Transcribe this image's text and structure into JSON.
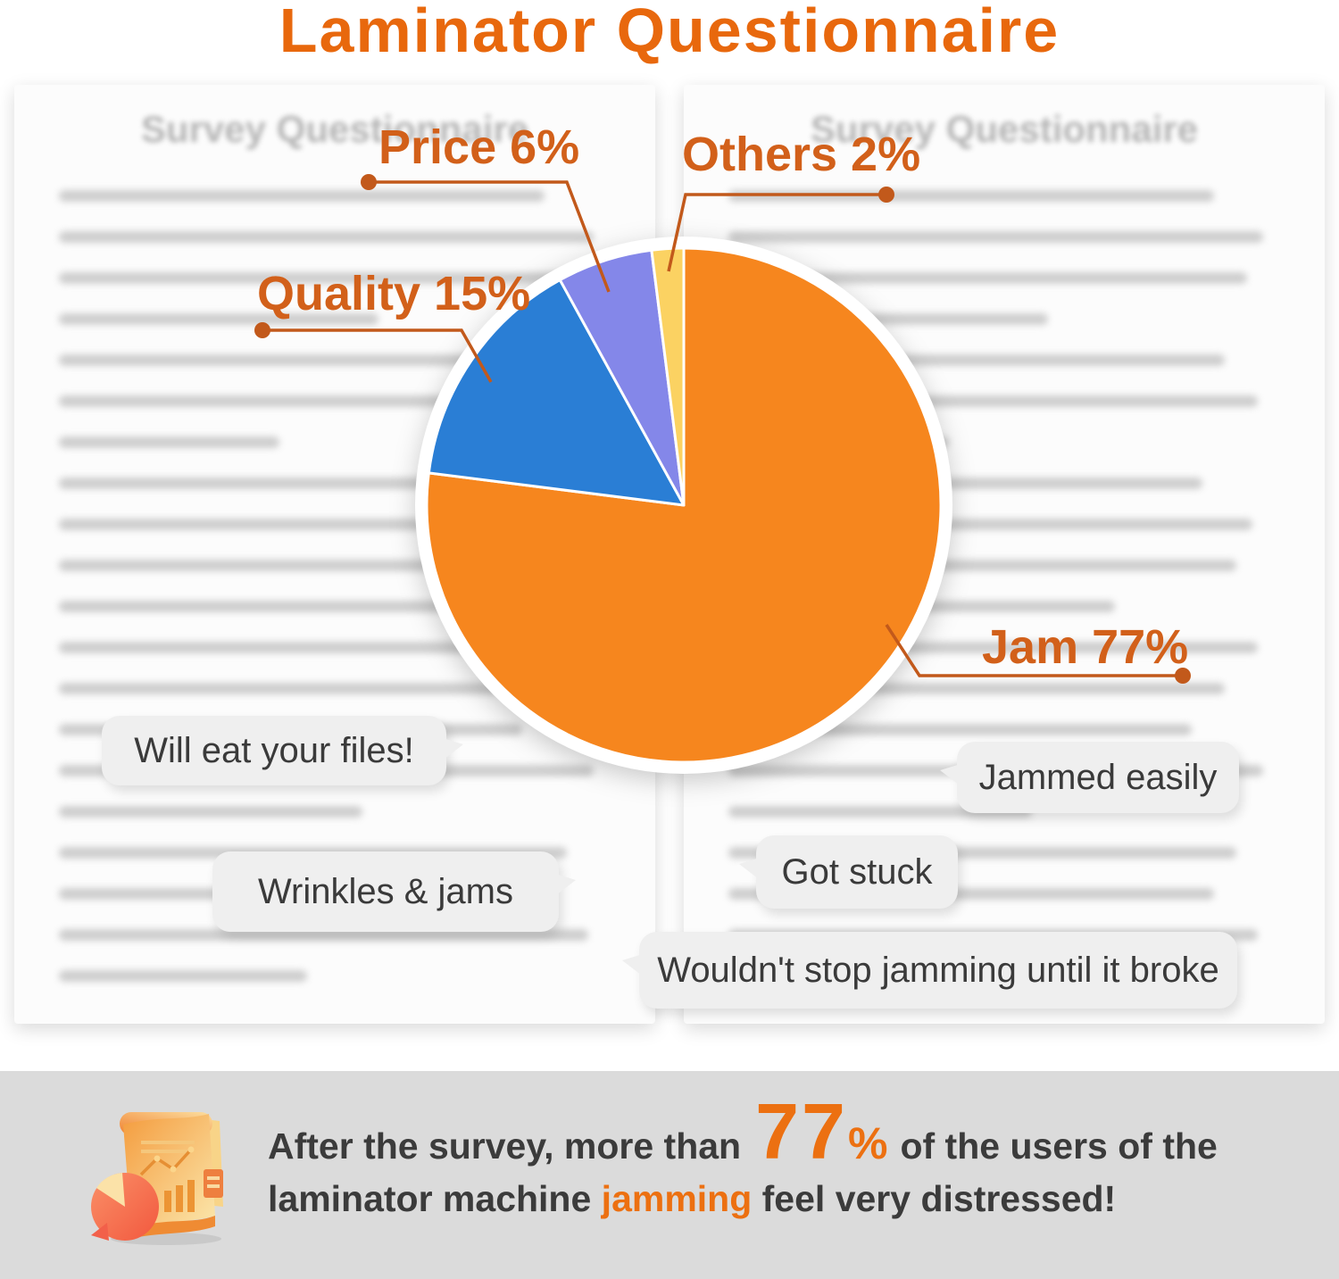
{
  "title": "Laminator Questionnaire",
  "background_docs": {
    "heading": "Survey Questionnaire"
  },
  "chart_data": {
    "type": "pie",
    "start_angle_deg": -90,
    "direction": "clockwise",
    "legend": "none",
    "segments": [
      {
        "label": "Jam",
        "value": 77,
        "color": "#F6861E",
        "display": "Jam 77%"
      },
      {
        "label": "Quality",
        "value": 15,
        "color": "#2A7ED5",
        "display": "Quality 15%"
      },
      {
        "label": "Price",
        "value": 6,
        "color": "#8487E9",
        "display": "Price 6%"
      },
      {
        "label": "Others",
        "value": 2,
        "color": "#FBD262",
        "display": "Others 2%"
      }
    ]
  },
  "quotes": [
    "Will eat your files!",
    "Jammed easily",
    "Got stuck",
    "Wrinkles & jams",
    "Wouldn't stop jamming until it broke"
  ],
  "footer": {
    "line1_prefix": "After the survey, more than",
    "stat_number": "77",
    "stat_percent": "%",
    "line1_suffix": "of the users of the",
    "line2_prefix": "laminator machine ",
    "line2_highlight": "jamming",
    "line2_suffix": " feel very distressed!"
  },
  "colors": {
    "title_orange": "#E8680D",
    "callout_orange": "#D2601A",
    "leader_line": "#C2591B",
    "bubble_bg": "#EFEFEF",
    "bubble_text": "#3A3A3A",
    "footer_band": "#DBDBDB",
    "footer_accent": "#EC7011"
  }
}
